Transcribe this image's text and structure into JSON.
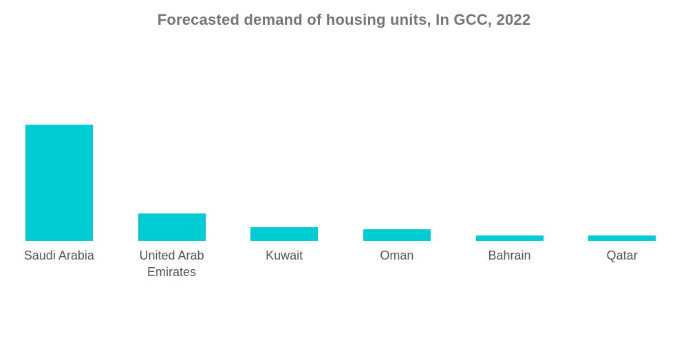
{
  "title": "Forecasted demand of housing units, In GCC, 2022",
  "colors": {
    "background": "#FFFFFF",
    "bar": "#00CDD3",
    "title_text": "#757575",
    "label_text": "#55565A"
  },
  "chart_data": {
    "type": "bar",
    "title": "Forecasted demand of housing units, In GCC, 2022",
    "categories": [
      "Saudi Arabia",
      "United Arab Emirates",
      "Kuwait",
      "Oman",
      "Bahrain",
      "Qatar"
    ],
    "values": [
      100,
      23.7,
      11.8,
      10,
      5,
      4.7
    ],
    "value_scale": "relative, Saudi Arabia = 100 (no numeric axis or data labels shown)",
    "xlabel": "",
    "ylabel": "",
    "ylim": [
      0,
      100
    ],
    "grid": false,
    "legend": false,
    "axes_visible": false,
    "bar_color": "#00CDD3",
    "orientation": "vertical"
  }
}
